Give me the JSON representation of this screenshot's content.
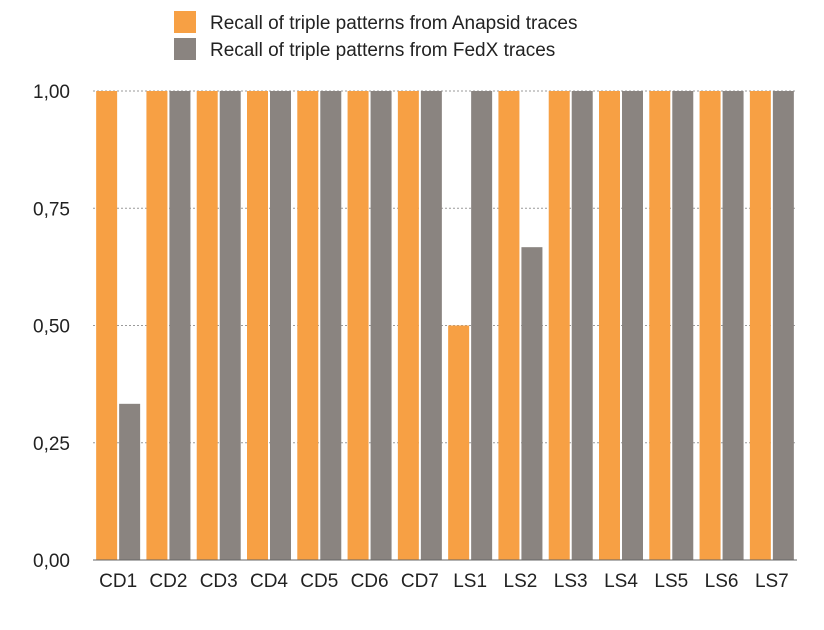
{
  "chart_data": {
    "type": "bar",
    "categories": [
      "CD1",
      "CD2",
      "CD3",
      "CD4",
      "CD5",
      "CD6",
      "CD7",
      "LS1",
      "LS2",
      "LS3",
      "LS4",
      "LS5",
      "LS6",
      "LS7"
    ],
    "series": [
      {
        "name": "Recall of triple patterns from Anapsid traces",
        "color": "#f7a044",
        "values": [
          1,
          1,
          1,
          1,
          1,
          1,
          1,
          0.5,
          1,
          1,
          1,
          1,
          1,
          1
        ]
      },
      {
        "name": "Recall of triple patterns from FedX traces",
        "color": "#8a8480",
        "values": [
          0.333,
          1,
          1,
          1,
          1,
          1,
          1,
          1,
          0.667,
          1,
          1,
          1,
          1,
          1
        ]
      }
    ],
    "yticks": [
      "0,00",
      "0,25",
      "0,50",
      "0,75",
      "1,00"
    ],
    "ylim": [
      0,
      1
    ],
    "grid": "horizontal dotted",
    "legend": "top-center"
  }
}
